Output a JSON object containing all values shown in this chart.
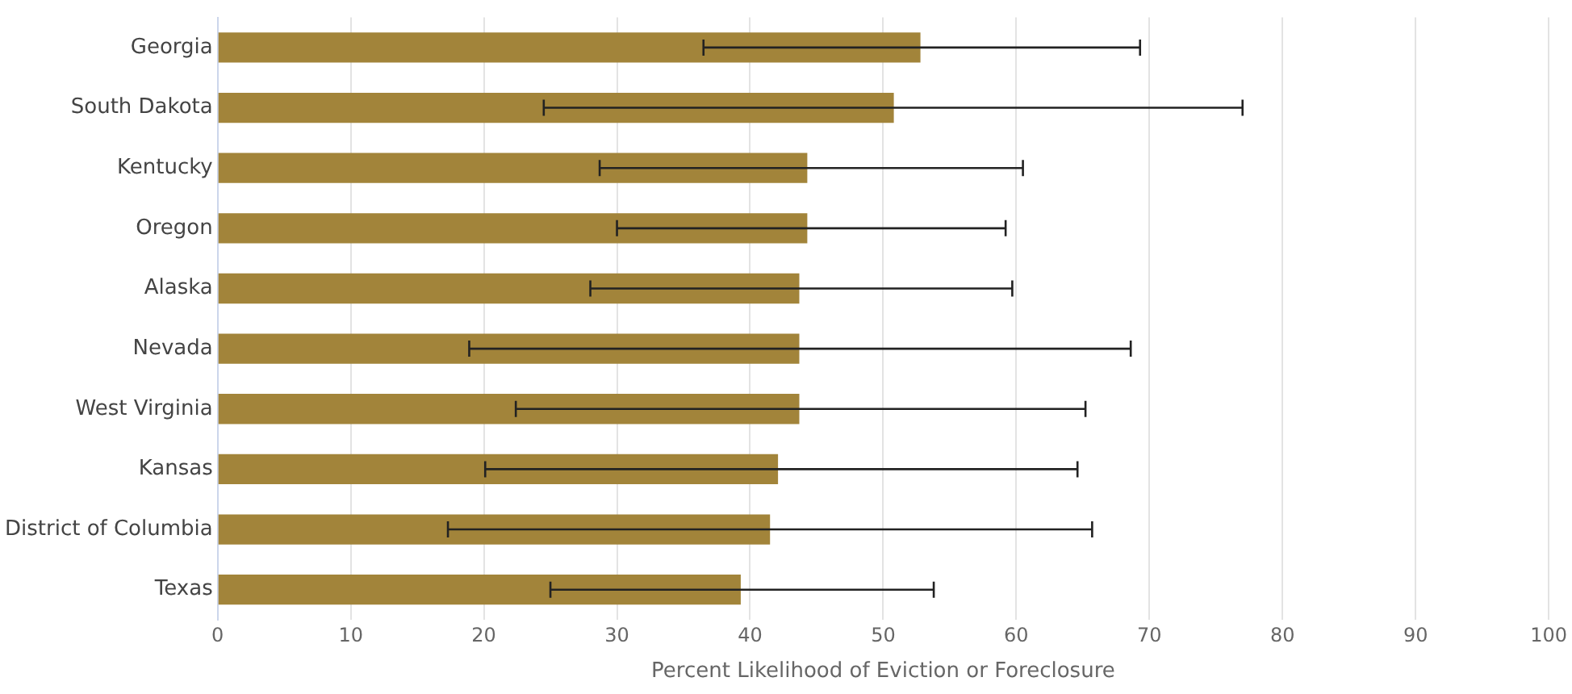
{
  "chart_data": {
    "type": "bar",
    "orientation": "horizontal",
    "xlabel": "Percent Likelihood of Eviction or Foreclosure",
    "categories": [
      "Georgia",
      "South Dakota",
      "Kentucky",
      "Oregon",
      "Alaska",
      "Nevada",
      "West Virginia",
      "Kansas",
      "District of Columbia",
      "Texas"
    ],
    "values": [
      52.8,
      50.8,
      44.3,
      44.3,
      43.7,
      43.7,
      43.7,
      42.1,
      41.5,
      39.3
    ],
    "errors": [
      [
        36.5,
        69.3
      ],
      [
        24.5,
        77.0
      ],
      [
        28.7,
        60.5
      ],
      [
        30.0,
        59.2
      ],
      [
        28.0,
        59.7
      ],
      [
        18.9,
        68.6
      ],
      [
        22.4,
        65.2
      ],
      [
        20.1,
        64.6
      ],
      [
        17.3,
        65.7
      ],
      [
        25.0,
        53.8
      ]
    ],
    "color": "#a2843a",
    "xlim": [
      0,
      100
    ],
    "xticks": [
      0,
      10,
      20,
      30,
      40,
      50,
      60,
      70,
      80,
      90,
      100
    ],
    "grid": "x",
    "legend": false
  }
}
